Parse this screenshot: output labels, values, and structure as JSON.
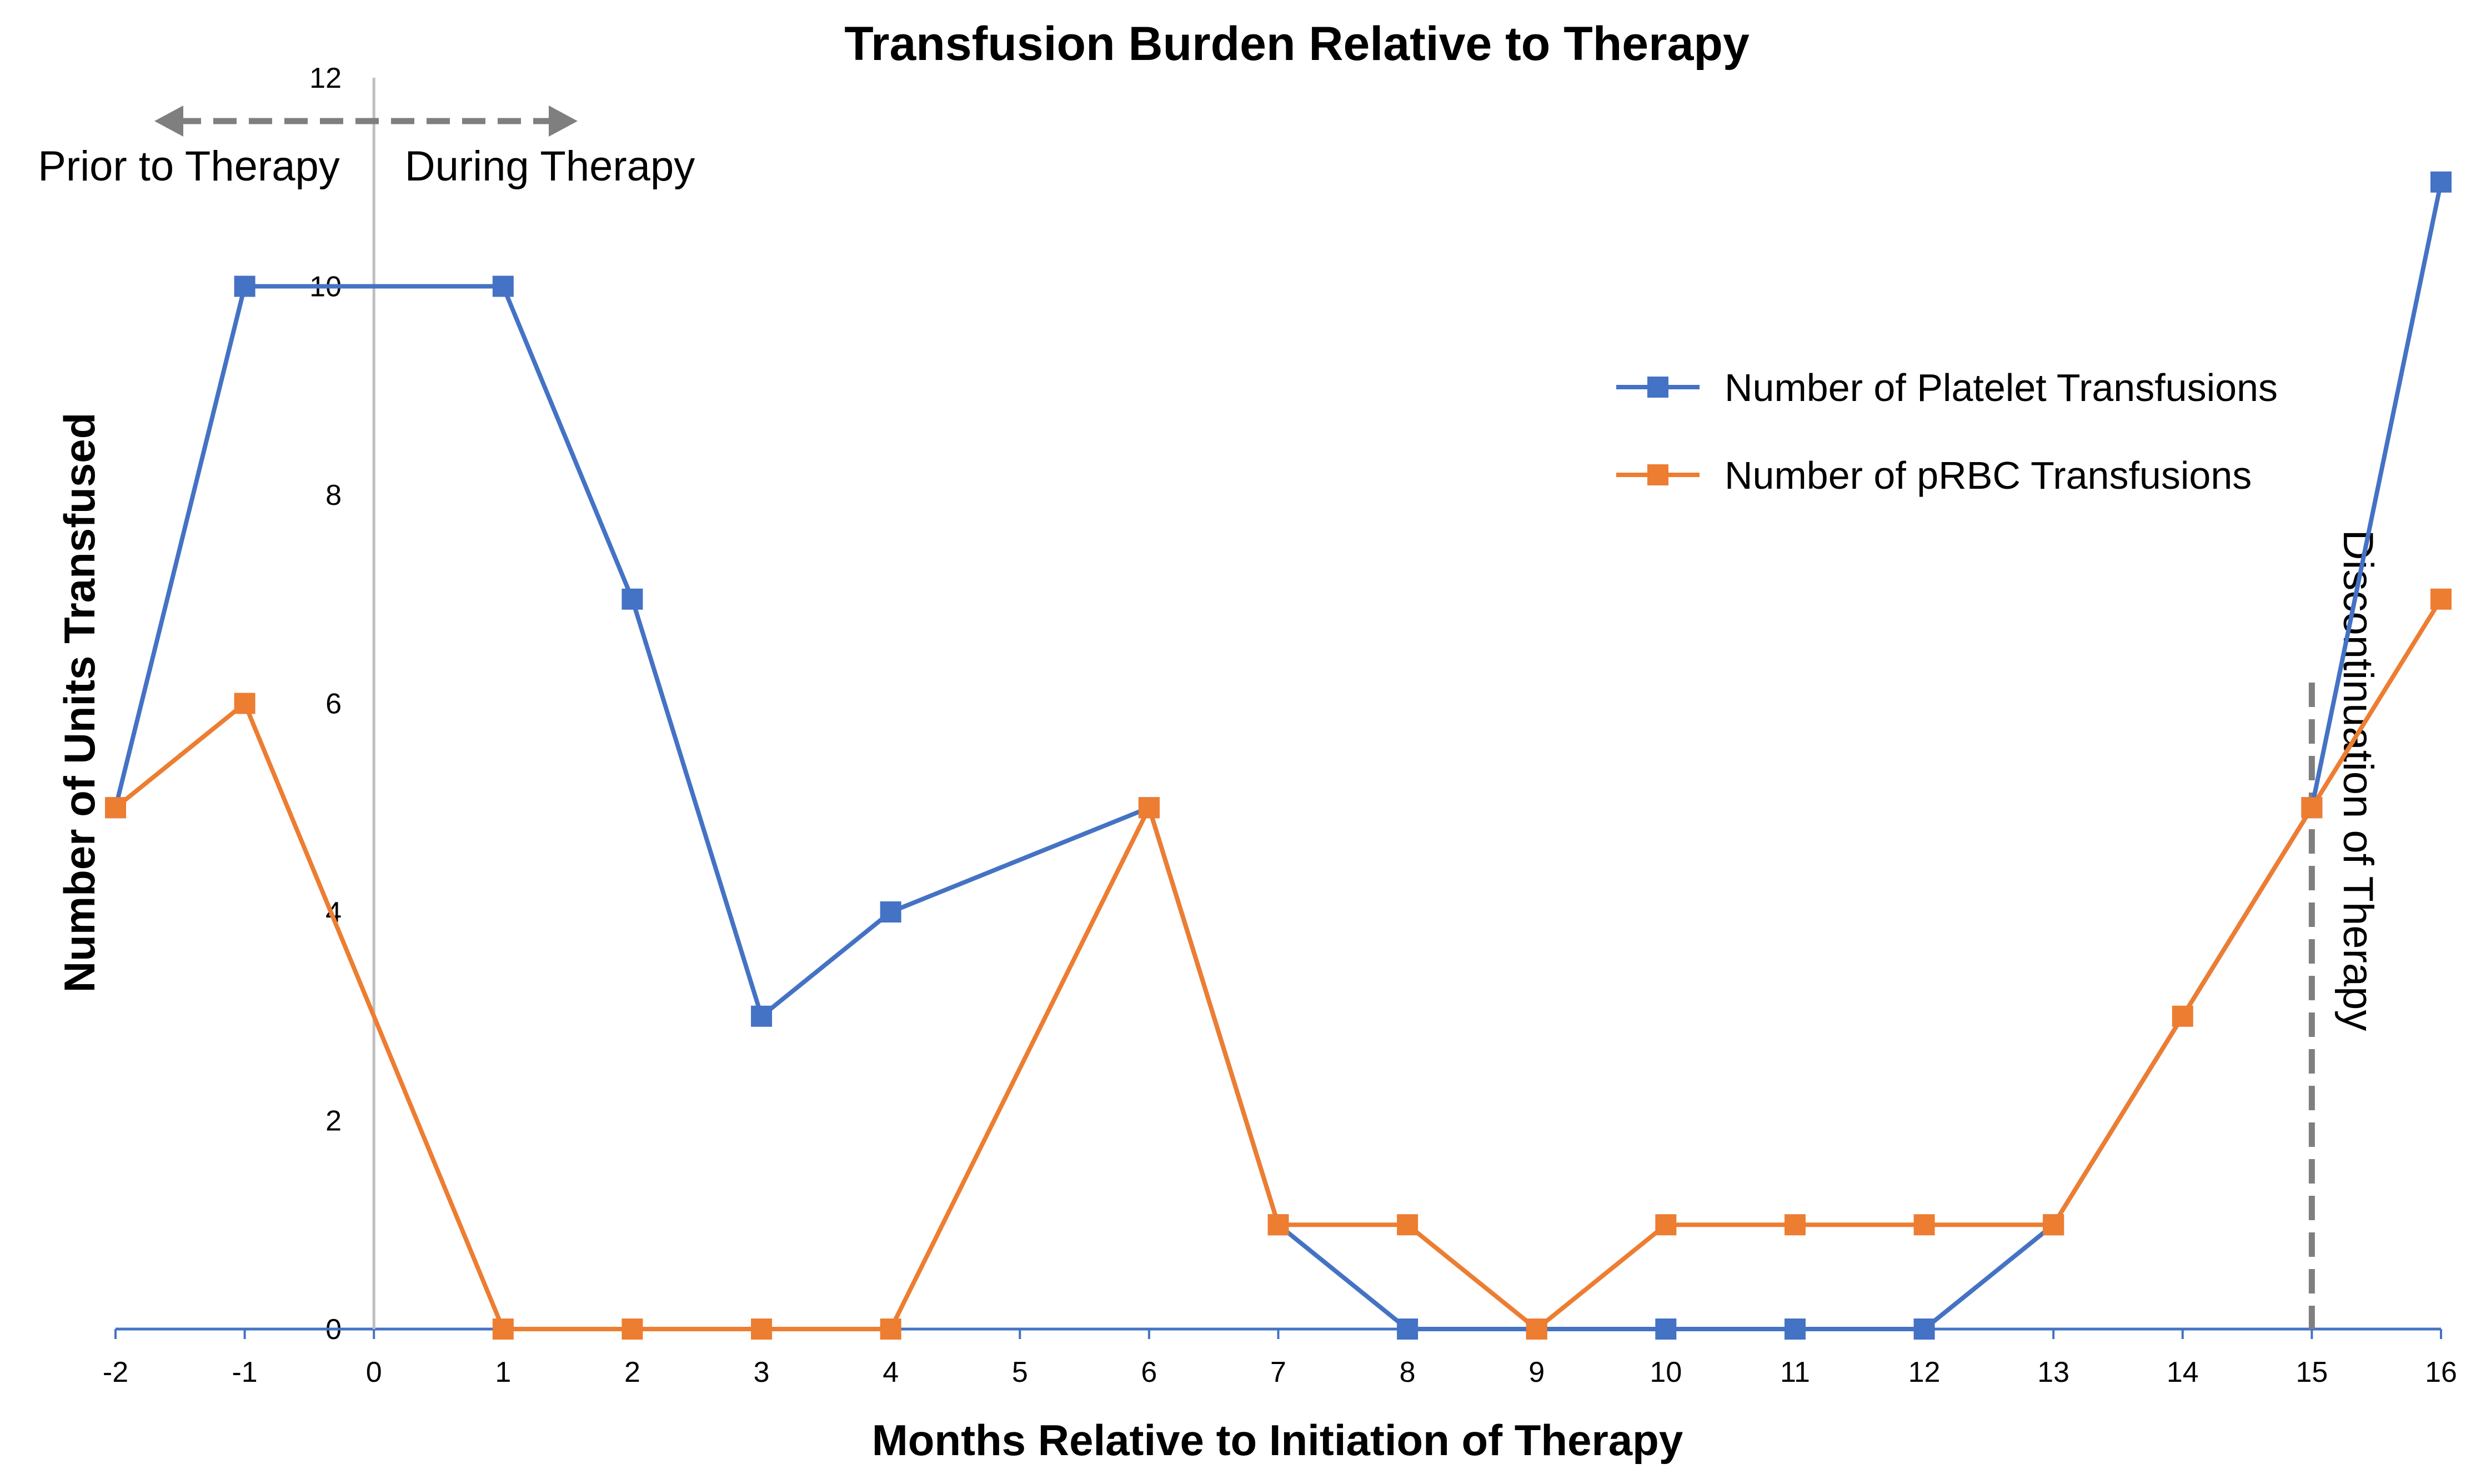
{
  "chart_data": {
    "type": "line",
    "title": "Transfusion Burden Relative to Therapy",
    "xlabel": "Months Relative to Initiation of Therapy",
    "ylabel": "Number of Units Transfused",
    "x": [
      -2,
      -1,
      0,
      1,
      2,
      3,
      4,
      5,
      6,
      7,
      8,
      9,
      10,
      11,
      12,
      13,
      14,
      15,
      16
    ],
    "x_ticks": [
      "-2",
      "-1",
      "0",
      "1",
      "2",
      "3",
      "4",
      "5",
      "6",
      "7",
      "8",
      "9",
      "10",
      "11",
      "12",
      "13",
      "14",
      "15",
      "16"
    ],
    "y_ticks": [
      "0",
      "2",
      "4",
      "6",
      "8",
      "10",
      "12"
    ],
    "xlim": [
      -2,
      16
    ],
    "ylim": [
      0,
      12
    ],
    "grid": false,
    "legend_position": "top-right",
    "series": [
      {
        "name": "Number of Platelet Transfusions",
        "color": "#4472C4",
        "marker": "square",
        "points": [
          [
            -2,
            5
          ],
          [
            -1,
            10
          ],
          [
            1,
            10
          ],
          [
            2,
            7
          ],
          [
            3,
            3
          ],
          [
            4,
            4
          ],
          [
            6,
            5
          ],
          [
            7,
            1
          ],
          [
            8,
            0
          ],
          [
            9,
            0
          ],
          [
            10,
            0
          ],
          [
            11,
            0
          ],
          [
            12,
            0
          ],
          [
            13,
            1
          ],
          [
            15,
            5
          ],
          [
            16,
            11
          ]
        ]
      },
      {
        "name": "Number of pRBC Transfusions",
        "color": "#ED7D31",
        "marker": "square",
        "points": [
          [
            -2,
            5
          ],
          [
            -1,
            6
          ],
          [
            1,
            0
          ],
          [
            2,
            0
          ],
          [
            3,
            0
          ],
          [
            4,
            0
          ],
          [
            6,
            5
          ],
          [
            7,
            1
          ],
          [
            8,
            1
          ],
          [
            9,
            0
          ],
          [
            10,
            1
          ],
          [
            11,
            1
          ],
          [
            12,
            1
          ],
          [
            13,
            1
          ],
          [
            14,
            3
          ],
          [
            15,
            5
          ],
          [
            16,
            7
          ]
        ]
      }
    ],
    "annotations": {
      "therapy_start_x": 0,
      "prior_label": "Prior to Therapy",
      "during_label": "During Therapy",
      "discontinuation_x": 15,
      "discontinuation_label": "Discontinuation of Therapy"
    }
  }
}
